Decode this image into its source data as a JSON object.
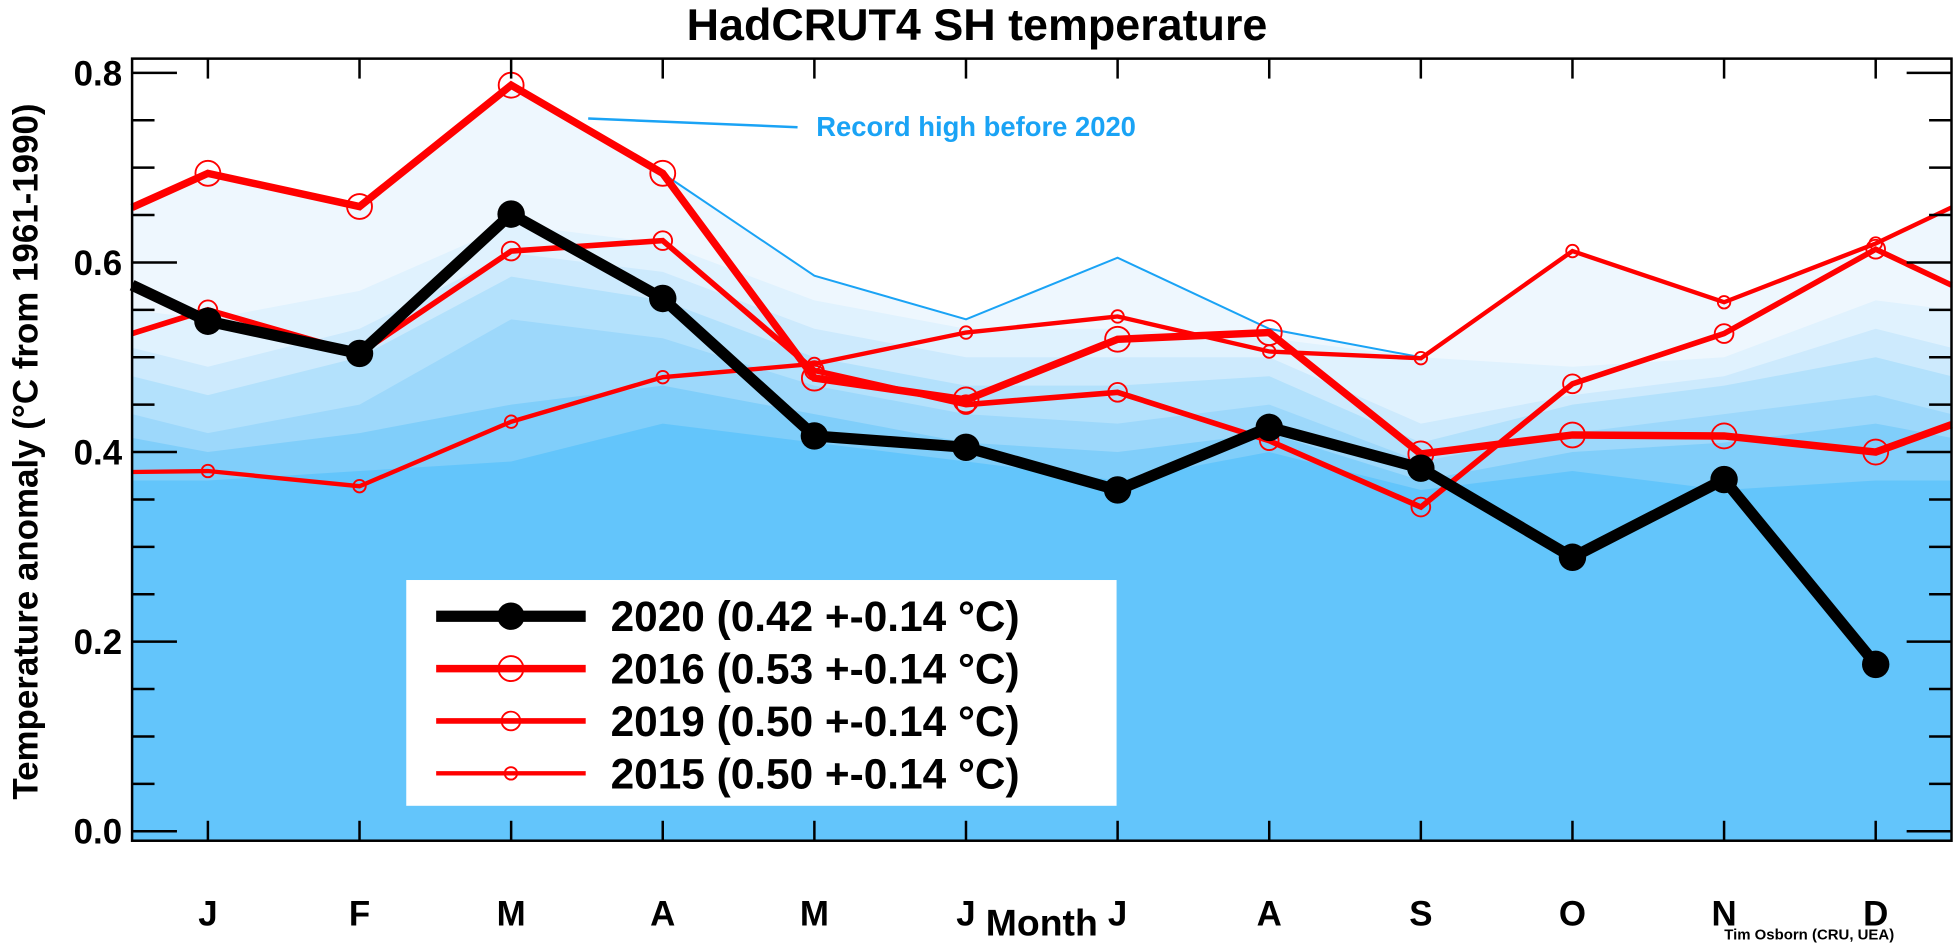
{
  "chart_data": {
    "type": "line",
    "title": "HadCRUT4 SH temperature",
    "xlabel": "Month",
    "ylabel": "Temperature anomaly (°C from 1961-1990)",
    "categories": [
      "J",
      "F",
      "M",
      "A",
      "M",
      "J",
      "J",
      "A",
      "S",
      "O",
      "N",
      "D"
    ],
    "yticks": [
      "0.0",
      "0.2",
      "0.4",
      "0.6",
      "0.8"
    ],
    "ylim": [
      -0.01,
      0.815
    ],
    "grid": false,
    "legend_position": "bottom-left",
    "series": [
      {
        "name": "2020",
        "label": "2020 (0.42 +-0.14 °C)",
        "color": "#000000",
        "marker": "filled-circle",
        "values": [
          0.538,
          0.504,
          0.651,
          0.562,
          0.417,
          0.405,
          0.36,
          0.426,
          0.383,
          0.289,
          0.371,
          0.176
        ],
        "edge_left": 0.576,
        "edge_right": null
      },
      {
        "name": "2016",
        "label": "2016 (0.53 +-0.14 °C)",
        "color": "#ff0000",
        "marker": "large-open-circle",
        "values": [
          0.694,
          0.659,
          0.787,
          0.694,
          0.478,
          0.455,
          0.519,
          0.526,
          0.398,
          0.418,
          0.417,
          0.4
        ],
        "edge_left": 0.658,
        "edge_right": 0.429
      },
      {
        "name": "2019",
        "label": "2019 (0.50 +-0.14 °C)",
        "color": "#ff0000",
        "marker": "medium-open-circle",
        "values": [
          0.55,
          0.504,
          0.612,
          0.623,
          0.486,
          0.45,
          0.463,
          0.412,
          0.342,
          0.472,
          0.525,
          0.614
        ],
        "edge_left": 0.525,
        "edge_right": 0.576
      },
      {
        "name": "2015",
        "label": "2015 (0.50 +-0.14 °C)",
        "color": "#ff0000",
        "marker": "small-open-circle",
        "values": [
          0.38,
          0.364,
          0.432,
          0.479,
          0.493,
          0.526,
          0.543,
          0.506,
          0.499,
          0.612,
          0.558,
          0.62
        ],
        "edge_left": 0.379,
        "edge_right": 0.658
      }
    ],
    "record_high": {
      "label": "Record high before 2020",
      "color": "#1aa3f5",
      "values": [
        0.694,
        0.659,
        0.787,
        0.694,
        0.586,
        0.54,
        0.605,
        0.53,
        0.5,
        0.612,
        0.558,
        0.62
      ],
      "edge_left": 0.658,
      "edge_right": 0.658
    },
    "shading_bands": [
      {
        "color": "#e0f2fe",
        "values": [
          0.54,
          0.57,
          0.64,
          0.62,
          0.56,
          0.53,
          0.53,
          0.52,
          0.5,
          0.49,
          0.5,
          0.56
        ]
      },
      {
        "color": "#cdeafd",
        "values": [
          0.49,
          0.53,
          0.61,
          0.59,
          0.53,
          0.5,
          0.5,
          0.5,
          0.43,
          0.46,
          0.48,
          0.53
        ]
      },
      {
        "color": "#b3e1fc",
        "values": [
          0.46,
          0.5,
          0.585,
          0.56,
          0.5,
          0.47,
          0.47,
          0.48,
          0.41,
          0.45,
          0.47,
          0.5
        ]
      },
      {
        "color": "#9dd8fb",
        "values": [
          0.42,
          0.45,
          0.54,
          0.52,
          0.47,
          0.44,
          0.43,
          0.45,
          0.39,
          0.42,
          0.44,
          0.46
        ]
      },
      {
        "color": "#80cefa",
        "values": [
          0.4,
          0.42,
          0.45,
          0.47,
          0.44,
          0.41,
          0.4,
          0.42,
          0.37,
          0.4,
          0.41,
          0.43
        ]
      },
      {
        "color": "#63c5fb",
        "values": [
          0.37,
          0.38,
          0.39,
          0.43,
          0.41,
          0.39,
          0.37,
          0.4,
          0.36,
          0.38,
          0.36,
          0.37
        ]
      }
    ],
    "credit": "Tim Osborn (CRU, UEA)"
  }
}
